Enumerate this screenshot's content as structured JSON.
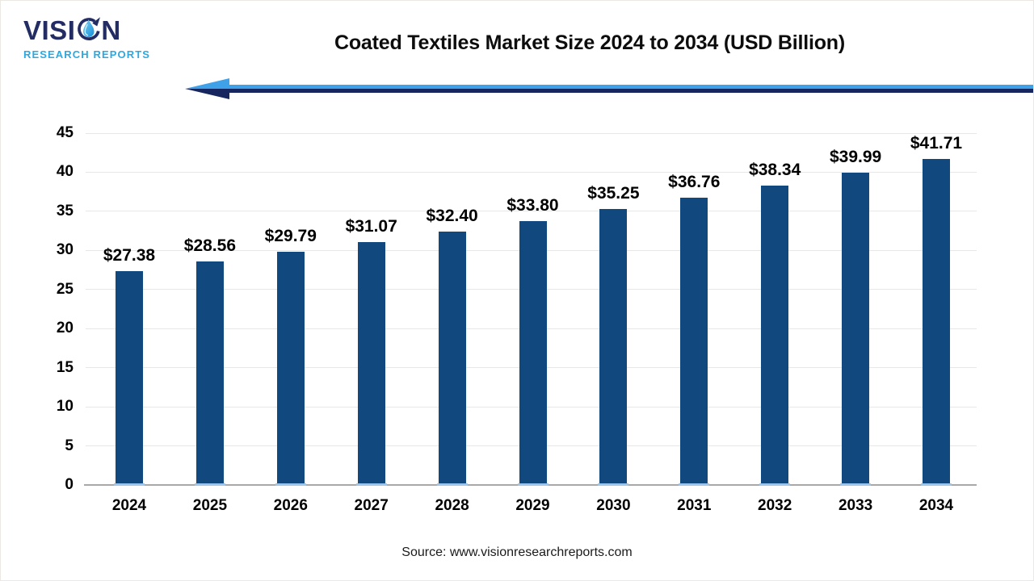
{
  "logo": {
    "word_start": "VISI",
    "word_end": "N",
    "subtitle": "RESEARCH REPORTS"
  },
  "chart_data": {
    "type": "bar",
    "title": "Coated Textiles Market Size 2024 to 2034 (USD Billion)",
    "categories": [
      "2024",
      "2025",
      "2026",
      "2027",
      "2028",
      "2029",
      "2030",
      "2031",
      "2032",
      "2033",
      "2034"
    ],
    "values": [
      27.38,
      28.56,
      29.79,
      31.07,
      32.4,
      33.8,
      35.25,
      36.76,
      38.34,
      39.99,
      41.71
    ],
    "data_labels": [
      "$27.38",
      "$28.56",
      "$29.79",
      "$31.07",
      "$32.40",
      "$33.80",
      "$35.25",
      "$36.76",
      "$38.34",
      "$39.99",
      "$41.71"
    ],
    "unit": "USD Billion",
    "xlabel": "",
    "ylabel": "",
    "ylim": [
      0,
      45
    ],
    "ytick_step": 5,
    "grid": "horizontal",
    "legend": "none"
  },
  "footer": {
    "source": "Source: www.visionresearchreports.com"
  },
  "colors": {
    "bar": "#11497E",
    "bar_base": "#9FC5E8",
    "gridline": "#E7E7E7",
    "axis_line": "#A8A8A8",
    "arrow_light": "#3FA2E9",
    "arrow_dark": "#17265E",
    "logo_navy": "#232D64",
    "logo_blue": "#2AA9E2"
  }
}
